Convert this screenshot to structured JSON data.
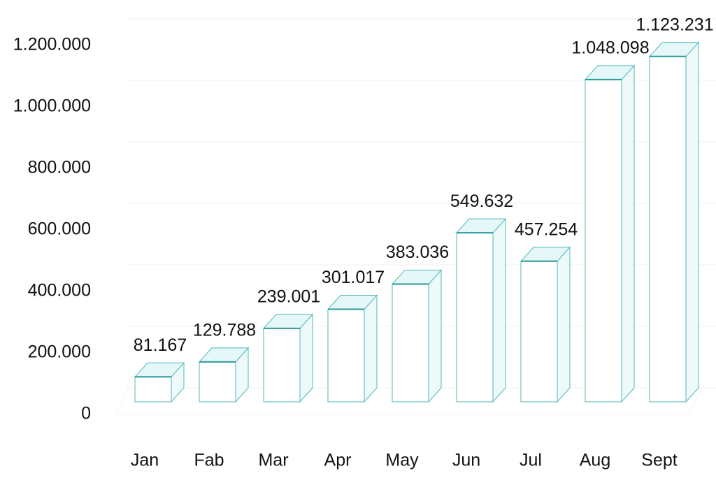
{
  "chart_data": {
    "type": "bar3d",
    "categories": [
      "Jan",
      "Fab",
      "Mar",
      "Apr",
      "May",
      "Jun",
      "Jul",
      "Aug",
      "Sept"
    ],
    "values": [
      81167,
      129788,
      239001,
      301017,
      383036,
      549632,
      457254,
      1048098,
      1123231
    ],
    "value_labels": [
      "81.167",
      "129.788",
      "239.001",
      "301.017",
      "383.036",
      "549.632",
      "457.254",
      "1.048.098",
      "1.123.231"
    ],
    "color": "#4fb8b8",
    "ylim": [
      0,
      1200000
    ],
    "yticks": [
      0,
      {
        "value": 200000,
        "label": "200.000"
      },
      {
        "value": 400000,
        "label": "400.000"
      },
      {
        "value": 600000,
        "label": "600.000"
      },
      {
        "value": 800000,
        "label": "800.000"
      },
      {
        "value": 1000000,
        "label": "1.000.000"
      },
      {
        "value": 1200000,
        "label": "1.200.000"
      }
    ],
    "grid": true
  }
}
